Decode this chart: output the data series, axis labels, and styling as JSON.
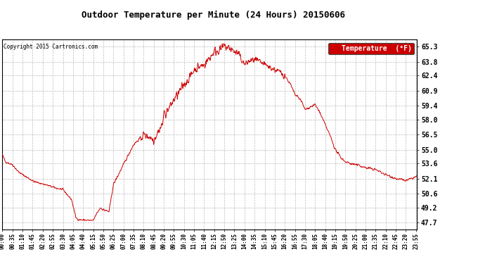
{
  "title": "Outdoor Temperature per Minute (24 Hours) 20150606",
  "copyright_text": "Copyright 2015 Cartronics.com",
  "legend_label": "Temperature  (°F)",
  "line_color": "#cc0000",
  "background_color": "#ffffff",
  "grid_color": "#bbbbbb",
  "yticks": [
    47.7,
    49.2,
    50.6,
    52.1,
    53.6,
    55.0,
    56.5,
    58.0,
    59.4,
    60.9,
    62.4,
    63.8,
    65.3
  ],
  "ylim": [
    47.0,
    66.0
  ],
  "total_minutes": 1440,
  "legend_bg": "#cc0000",
  "legend_text_color": "#ffffff",
  "control_x": [
    0,
    10,
    35,
    55,
    70,
    110,
    150,
    180,
    210,
    240,
    255,
    265,
    290,
    315,
    325,
    340,
    350,
    370,
    385,
    420,
    455,
    480,
    490,
    510,
    525,
    540,
    555,
    560,
    580,
    595,
    615,
    630,
    650,
    665,
    685,
    700,
    720,
    735,
    755,
    770,
    790,
    805,
    820,
    840,
    855,
    875,
    895,
    910,
    930,
    945,
    965,
    980,
    1000,
    1015,
    1035,
    1050,
    1070,
    1085,
    1100,
    1120,
    1140,
    1155,
    1175,
    1190,
    1210,
    1225,
    1240,
    1260,
    1280,
    1295,
    1310,
    1330,
    1350,
    1365,
    1385,
    1400,
    1420,
    1435,
    1439
  ],
  "control_y": [
    54.5,
    53.8,
    53.5,
    52.8,
    52.5,
    51.8,
    51.5,
    51.2,
    51.0,
    50.0,
    48.2,
    48.0,
    47.95,
    47.9,
    48.5,
    49.2,
    49.0,
    48.8,
    51.5,
    53.5,
    55.5,
    56.2,
    56.5,
    56.3,
    56.0,
    56.8,
    57.5,
    58.5,
    59.2,
    60.0,
    60.8,
    61.5,
    62.2,
    63.0,
    63.3,
    63.5,
    64.2,
    64.8,
    65.0,
    65.3,
    65.1,
    64.8,
    64.5,
    63.5,
    63.8,
    64.0,
    63.7,
    63.5,
    63.2,
    63.0,
    62.7,
    62.4,
    61.5,
    60.5,
    60.0,
    59.0,
    59.3,
    59.5,
    58.8,
    57.5,
    56.2,
    55.0,
    54.2,
    53.8,
    53.6,
    53.5,
    53.4,
    53.2,
    53.1,
    53.0,
    52.8,
    52.5,
    52.3,
    52.1,
    52.0,
    51.9,
    52.1,
    52.3,
    52.3
  ],
  "noise_seed": 42
}
